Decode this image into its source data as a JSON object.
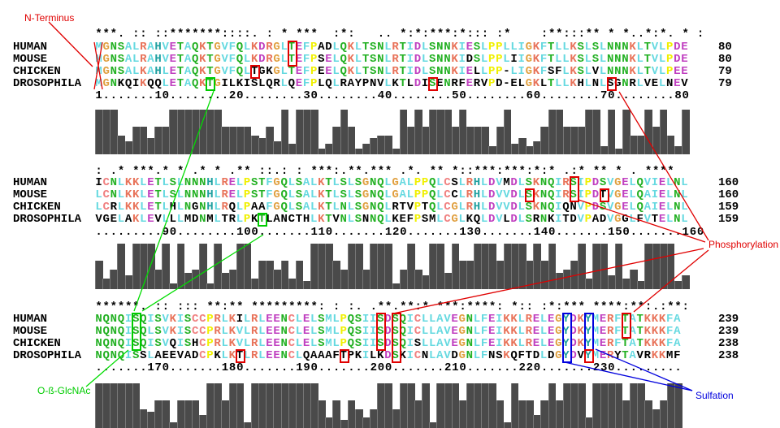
{
  "species": [
    "HUMAN",
    "MOUSE",
    "CHICKEN",
    "DROSOPHILA"
  ],
  "blocks": [
    {
      "conservation": "***. :: ::*******::::. : * ***  :*:   .. *:*:***:*::: :*    :**:::** * *..*:*. * :",
      "ruler": "1.......10........20........30........40........50........60........70........80",
      "sequences": [
        "MGNSALRAHVETAQKTGVFQLKDRGLTEFPADLQKLTSNLRTIDLSNNKIESLPPLLIGKFTLLKSLSLNNNKLTVLPDE",
        "MGNSALRAHVETAQKTGVFQLKDRGLTEFPSELQKLTSNLRTIDLSNNKIDSLPPLIIGKFTLLKSLSLNNNKLTVLPDE",
        "MGNSALKAHLETAQKTGVFQLTGKGLTEFPEELQKLTSNLRTIDLSNNKIELLPP-LIGKFSFLKSLVLNNNKLTVLPEE",
        "MGNKQIKQQLETAQKTGILKISLQRLQEFPLQLRAYPNVLKTLDISENRFERVPD-ELGKLTLLKHLNLSGNRLVELNEV"
      ],
      "counts": [
        "80",
        "80",
        "79",
        "79"
      ],
      "sites": [
        {
          "rows": [
            0,
            1
          ],
          "col": 27,
          "type": "phosphorylation"
        },
        {
          "rows": [
            2
          ],
          "col": 22,
          "type": "phosphorylation"
        },
        {
          "rows": [
            3
          ],
          "col": 46,
          "type": "phosphorylation"
        },
        {
          "rows": [
            3
          ],
          "col": 70,
          "type": "phosphorylation"
        },
        {
          "rows": [
            3
          ],
          "col": 16,
          "type": "glcnac"
        }
      ]
    },
    {
      "conservation": ": .* ***.* * .* * .** ::.: : ***:.**.*** .*. ** *::***:***:*:* .:* ** * . ****",
      "ruler": ".........90........100.......110.......120.......130.......140.......150.......160",
      "sequences": [
        "ICNLKKLETLSLNNNHLRELPSTFGQLSALKTLSLSGNQLGALPPQLCSLRHLDVMDLSKNQIRSIPDSVGELQVIELNL",
        "LCNLKKLETLSLNNNHLRELPSTFGQLSALKTLSLSGNQLGALPPQLCCLRHLDVVDLSKNQIRSIPDTVGELQAIELNL",
        "LCRLKKLETLHLNGNHLRQLPAAFGQLSALKTLNLSGNQLRTVPTQLCGLRHLDVVDLSKNQIQNVPDSVGELQAIELNL",
        "VGELAKLEVLLLMDNMLTRLPKTLANCTHLKTVNLSNNQLKEFPSMLCGLKQLDVLDLSRNKITDVPADVGGLFVTELNL"
      ],
      "counts": [
        "160",
        "160",
        "159",
        "159"
      ],
      "sites": [
        {
          "rows": [
            0,
            1
          ],
          "col": 65,
          "type": "phosphorylation"
        },
        {
          "rows": [
            1
          ],
          "col": 59,
          "type": "phosphorylation"
        },
        {
          "rows": [
            1
          ],
          "col": 69,
          "type": "phosphorylation"
        },
        {
          "rows": [
            3
          ],
          "col": 23,
          "type": "glcnac"
        }
      ]
    },
    {
      "conservation": "******. :: ::: **:** *********: : :. .**.**:* ***:****: *:: :*:*** ****:**:.:**:",
      "ruler": ".......170.......180.......190.......200.......210.......220.......230.........",
      "sequences": [
        "NQNQISQISVKISCCPRLKILRLEENCLELSMLPQSIISDSQICLLAVEGNLFEIKKLRELEGYDKYMERFTATKKKFA",
        "NQNQISQLSVKISCCPRLKVLRLEENCLELSMLPQSIISDSQICLLAVEGNLFEIKKLRELEGYDKYMERFTATKKKFA",
        "NQNQISQISVQISHCPRLKVLRLEENCLELSMLPQSIISDSQISLLAVEGNLFEIKKLRELEGYDKYMERFTATKKKFA",
        "NQNQISSLAEEVADCPKLKTLRLEENCLQAAAFTPKILKDSKICNLAVDGNLFNSKQFTDLDGYDVYMERYTAVRKKMF"
      ],
      "counts": [
        "239",
        "239",
        "238",
        "238"
      ],
      "sites": [
        {
          "rows": [
            0,
            1,
            2
          ],
          "col": 6,
          "type": "glcnac"
        },
        {
          "rows": [
            0,
            1,
            2
          ],
          "col": 39,
          "type": "phosphorylation"
        },
        {
          "rows": [
            0,
            1,
            2,
            3
          ],
          "col": 41,
          "type": "phosphorylation"
        },
        {
          "rows": [
            3
          ],
          "col": 20,
          "type": "phosphorylation"
        },
        {
          "rows": [
            3
          ],
          "col": 34,
          "type": "phosphorylation"
        },
        {
          "rows": [
            0,
            1
          ],
          "col": 72,
          "type": "phosphorylation"
        },
        {
          "rows": [
            0,
            1,
            2,
            3
          ],
          "col": 64,
          "type": "sulfation"
        },
        {
          "rows": [
            0,
            1,
            2
          ],
          "col": 67,
          "type": "sulfation"
        },
        {
          "rows": [
            3
          ],
          "col": 67,
          "type": "phosphorylation"
        }
      ]
    }
  ],
  "labels": {
    "n_terminus": "N-Terminus",
    "phosphorylation": "Phosphorylation",
    "glcnac": "O-ß-GlcNAc",
    "sulfation": "Sulfation"
  },
  "colors": {
    "phosphorylation": "#e00000",
    "glcnac": "#00cc00",
    "sulfation": "#0000dd",
    "hydrophobic": "#66d9e0",
    "basic": "#e8735a",
    "acidic": "#c040c0",
    "polar": "#22b022",
    "glycine": "#e0a040",
    "proline": "#f0f000",
    "cysteine": "#f08080",
    "aromatic": "#20a0a0",
    "bar": "#4a4a4a"
  }
}
